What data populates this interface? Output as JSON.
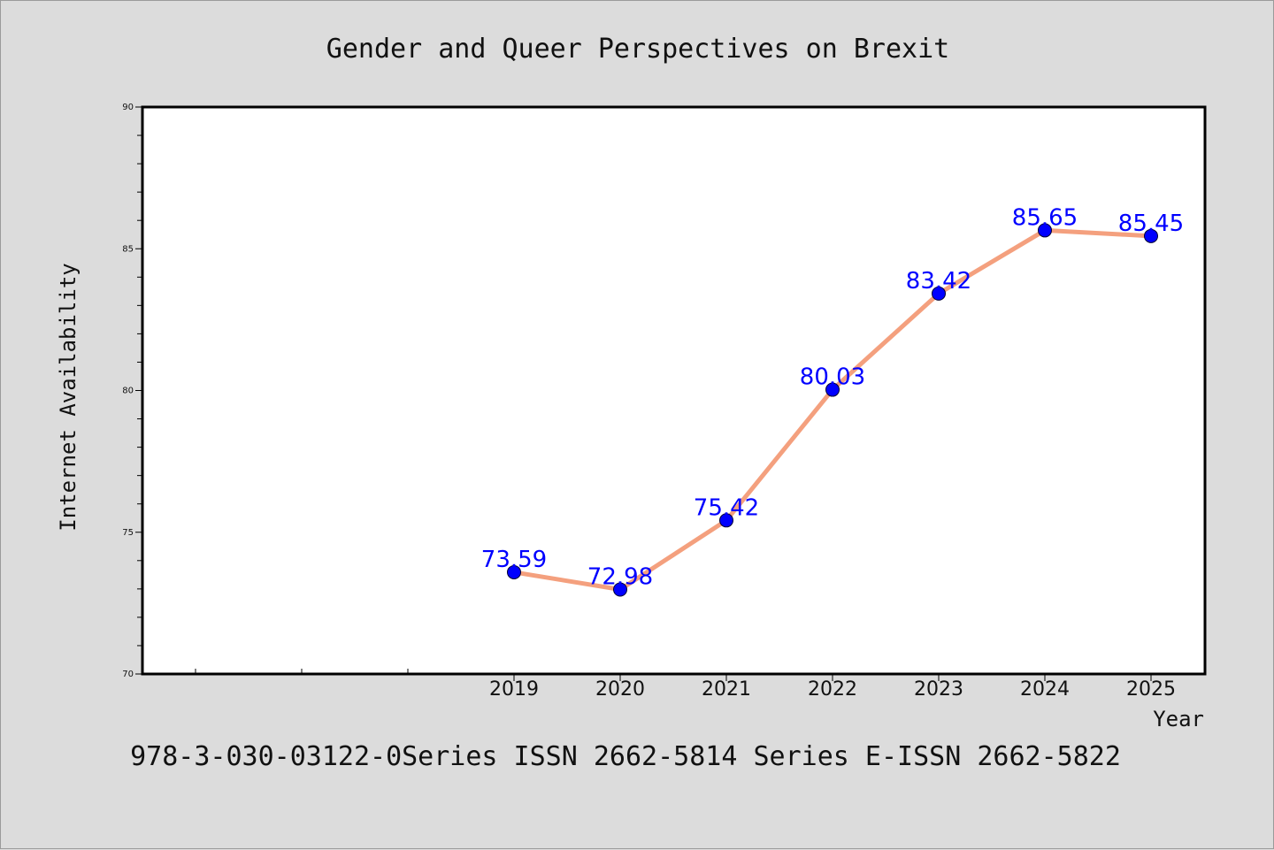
{
  "footer": "978-3-030-03122-0Series ISSN 2662-5814 Series E-ISSN 2662-5822",
  "colors": {
    "background": "#dcdcdc",
    "plot_area": "#ffffff",
    "line": "#f4a07e",
    "marker": "#0000ff",
    "data_label": "#0000ff"
  },
  "chart_data": {
    "type": "line",
    "title": "Gender and Queer Perspectives on Brexit",
    "xlabel": "Year",
    "ylabel": "Internet Availability",
    "categories": [
      "2019",
      "2020",
      "2021",
      "2022",
      "2023",
      "2024",
      "2025"
    ],
    "series": [
      {
        "values": [
          73.59,
          72.98,
          75.42,
          80.03,
          83.42,
          85.65,
          85.45
        ],
        "labels": [
          "73.59",
          "72.98",
          "75.42",
          "80.03",
          "83.42",
          "85.65",
          "85.45"
        ]
      }
    ],
    "ylim": [
      70,
      90
    ],
    "yticks": [
      70,
      75,
      80,
      85,
      90
    ],
    "grid": false,
    "legend": "none"
  }
}
